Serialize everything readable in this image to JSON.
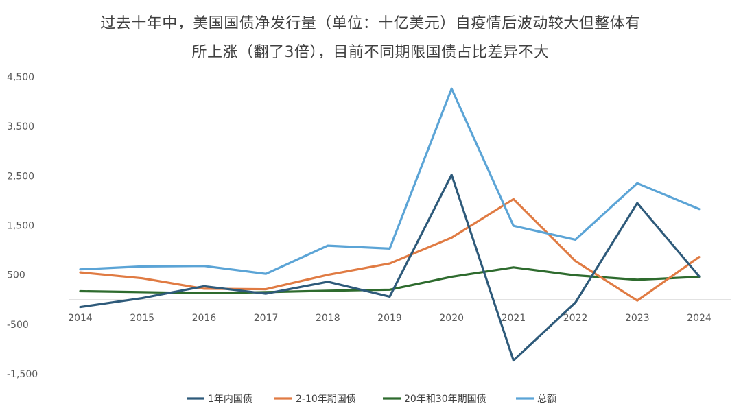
{
  "chart_data": {
    "type": "line",
    "title_line1": "过去十年中，美国国债净发行量（单位：十亿美元）自疫情后波动较大但整体有",
    "title_line2": "所上涨（翻了3倍），目前不同期限国债占比差异不大",
    "categories": [
      "2014",
      "2015",
      "2016",
      "2017",
      "2018",
      "2019",
      "2020",
      "2021",
      "2022",
      "2023",
      "2024"
    ],
    "y_ticks": [
      4500,
      3500,
      2500,
      1500,
      500,
      -500,
      -1500
    ],
    "y_tick_labels": [
      "4,500",
      "3,500",
      "2,500",
      "1,500",
      "500",
      "-500",
      "-1,500"
    ],
    "ylim": [
      -1500,
      4500
    ],
    "xlabel": "",
    "ylabel": "",
    "legend_position": "bottom",
    "series": [
      {
        "name": "1年内国债",
        "color": "#2e5a7a",
        "values": [
          -150,
          30,
          270,
          120,
          360,
          60,
          2520,
          -1230,
          -60,
          1950,
          470
        ]
      },
      {
        "name": "2-10年期国债",
        "color": "#e07b43",
        "values": [
          550,
          430,
          220,
          210,
          500,
          730,
          1250,
          2030,
          780,
          -20,
          860
        ]
      },
      {
        "name": "20年和30年期国债",
        "color": "#2e6b2e",
        "values": [
          170,
          150,
          130,
          150,
          180,
          200,
          460,
          650,
          490,
          400,
          460
        ]
      },
      {
        "name": "总额",
        "color": "#5ba4d6",
        "values": [
          610,
          670,
          680,
          520,
          1090,
          1030,
          4260,
          1490,
          1210,
          2350,
          1830
        ]
      }
    ]
  }
}
